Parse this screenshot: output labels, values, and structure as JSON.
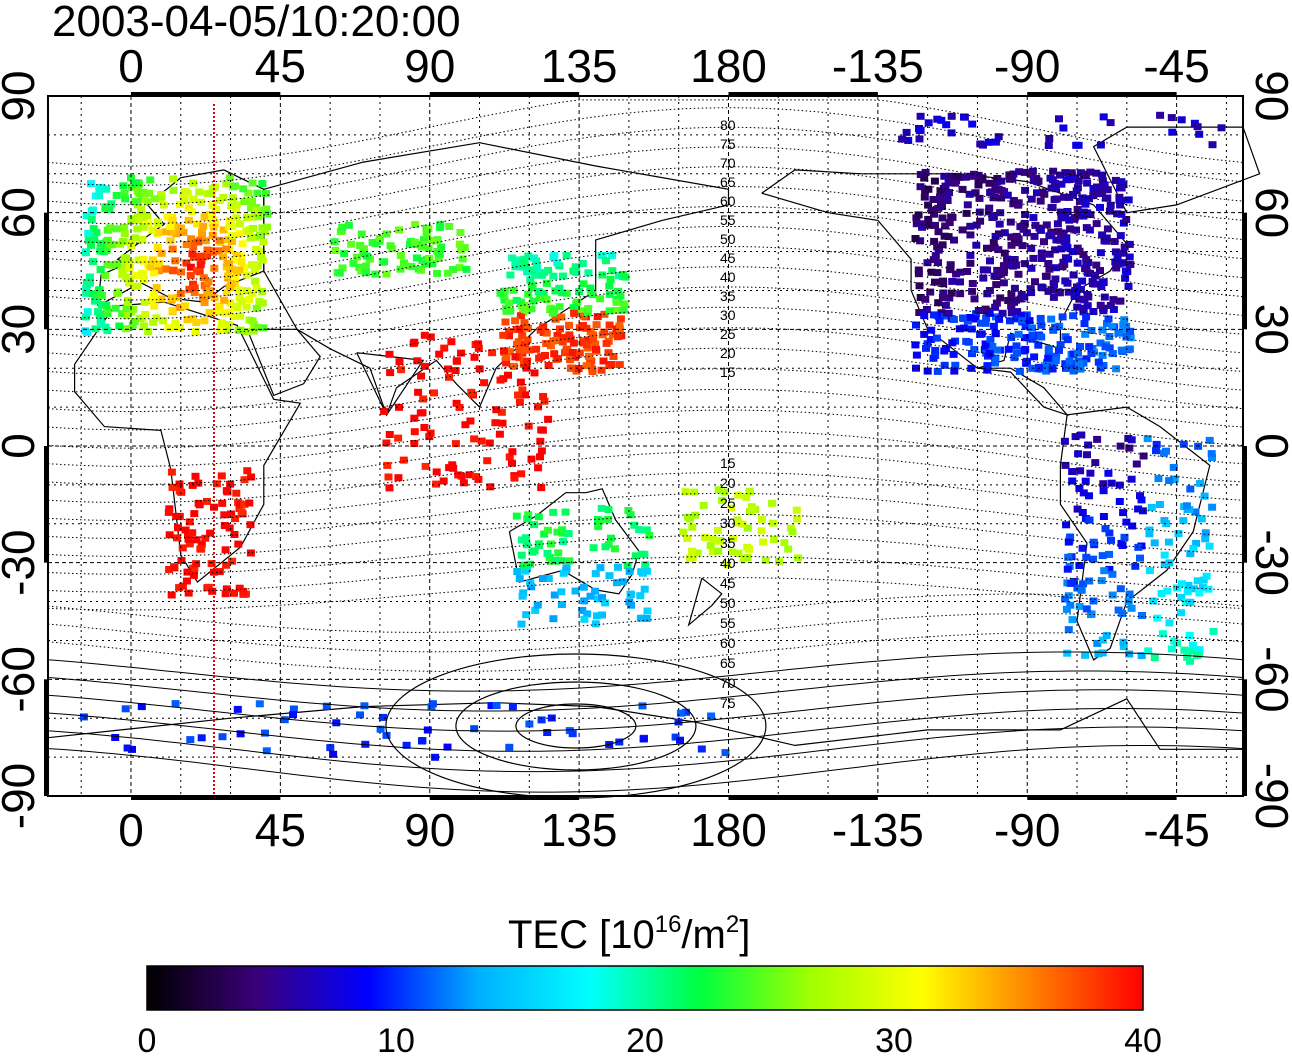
{
  "title": "2003-04-05/10:20:00",
  "map": {
    "lon_tick_labels": [
      "0",
      "45",
      "90",
      "135",
      "180",
      "-135",
      "-90",
      "-45"
    ],
    "lon_tick_values": [
      0,
      45,
      90,
      135,
      180,
      225,
      270,
      315
    ],
    "lat_tick_labels": [
      "90",
      "60",
      "30",
      "0",
      "-30",
      "-60",
      "-90"
    ],
    "lat_tick_values": [
      90,
      60,
      30,
      0,
      -30,
      -60,
      -90
    ],
    "lon_range": [
      -25,
      335
    ],
    "lat_range": [
      -90,
      90
    ],
    "grid": true,
    "terminator_longitude": 25,
    "contour_labels_north": [
      "80",
      "75",
      "70",
      "65",
      "60",
      "55",
      "50",
      "45",
      "40",
      "35",
      "30",
      "25",
      "20",
      "15"
    ],
    "contour_labels_south": [
      "15",
      "20",
      "25",
      "30",
      "35",
      "40",
      "45",
      "50",
      "55",
      "60",
      "65",
      "70",
      "75"
    ]
  },
  "colorbar": {
    "title": "TEC  [10",
    "title_sup1": "16",
    "title_mid": "/m",
    "title_sup2": "2",
    "title_end": "]",
    "labels": [
      "0",
      "10",
      "20",
      "30",
      "40"
    ],
    "min": 0,
    "max": 40,
    "colors": [
      "#000000",
      "#3a007a",
      "#0000ff",
      "#00b0ff",
      "#00ffff",
      "#00ff40",
      "#a0ff00",
      "#ffff00",
      "#ff8000",
      "#ff0000"
    ]
  },
  "tec_regions": [
    {
      "name": "europe",
      "lon_min": -15,
      "lon_max": 40,
      "lat_min": 28,
      "lat_max": 70,
      "value": 30
    },
    {
      "name": "north-america",
      "lon_min": 235,
      "lon_max": 300,
      "lat_min": 15,
      "lat_max": 75,
      "value": 6
    },
    {
      "name": "east-asia",
      "lon_min": 110,
      "lon_max": 145,
      "lat_min": 20,
      "lat_max": 50,
      "value": 33
    },
    {
      "name": "south-america",
      "lon_min": 280,
      "lon_max": 325,
      "lat_min": -55,
      "lat_max": 5,
      "value": 13
    },
    {
      "name": "australia",
      "lon_min": 115,
      "lon_max": 155,
      "lat_min": -45,
      "lat_max": -12,
      "value": 18
    }
  ]
}
